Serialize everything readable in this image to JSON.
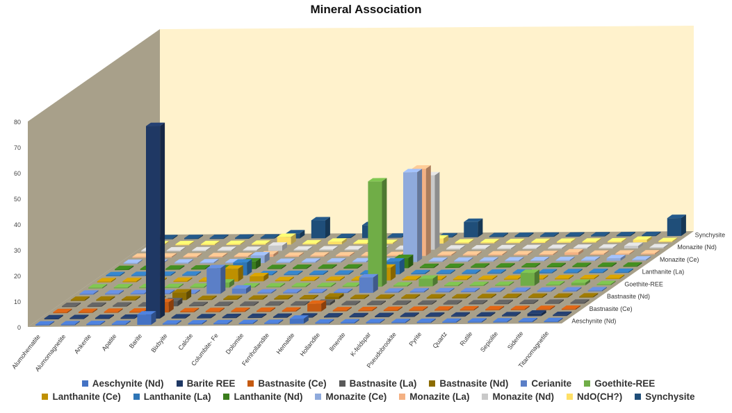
{
  "chart_data": {
    "type": "bar",
    "subtype": "3d-clustered-depth",
    "title": "Mineral Association",
    "xlabel": "",
    "ylabel": "",
    "ylim": [
      0,
      80
    ],
    "yticks": [
      0,
      10,
      20,
      30,
      40,
      50,
      60,
      70,
      80
    ],
    "legend_position": "bottom",
    "categories": [
      "Alumohematite",
      "Alumomagnetite",
      "Ankerite",
      "Apatite",
      "Barite",
      "Bixbyite",
      "Calcite",
      "Columbite- Fe",
      "Dolomite",
      "Ferrihollandite",
      "Hematite",
      "Hollandite",
      "Ilmenite",
      "K-feldspar",
      "Pseudobrookite",
      "Pyrite",
      "Quartz",
      "Rutile",
      "Sepiolite",
      "Siderite",
      "Titanomagnetite"
    ],
    "depth_labels": [
      "Aeschynite (Nd)",
      "Bastnasite (Ce)",
      "Bastnasite (Nd)",
      "Goethite-REE",
      "Lanthanite (La)",
      "Monazite (Ce)",
      "Monazite (Nd)",
      "Synchysite"
    ],
    "series": [
      {
        "name": "Aeschynite (Nd)",
        "color": "#4472C4",
        "values": [
          0,
          0,
          0,
          0,
          4,
          0,
          0,
          0,
          0,
          0,
          2,
          0,
          0,
          0,
          0,
          0,
          0,
          0,
          0,
          0,
          0
        ]
      },
      {
        "name": "Barite REE",
        "color": "#1F3864",
        "values": [
          0,
          0,
          0,
          0,
          75,
          0,
          0,
          0,
          0,
          0,
          0,
          0,
          0,
          0,
          0,
          0,
          0,
          0,
          0,
          1,
          0
        ]
      },
      {
        "name": "Bastnasite (Ce)",
        "color": "#C55A11",
        "values": [
          0,
          0,
          0,
          0,
          4,
          0,
          0,
          0,
          0,
          0,
          3,
          0,
          0,
          0,
          0,
          0,
          0,
          0,
          0,
          0,
          0
        ]
      },
      {
        "name": "Bastnasite (La)",
        "color": "#595959",
        "values": [
          0,
          0,
          0,
          0,
          2,
          0,
          0,
          0,
          0,
          0,
          1,
          0,
          0,
          0,
          0,
          0,
          0,
          0,
          0,
          0,
          0
        ]
      },
      {
        "name": "Bastnasite (Nd)",
        "color": "#8C6C00",
        "values": [
          0,
          0,
          0,
          0,
          3,
          0,
          0,
          0,
          0,
          0,
          1,
          0,
          0,
          0,
          0,
          0,
          0,
          0,
          0,
          0,
          0
        ]
      },
      {
        "name": "Cerianite",
        "color": "#5B7FC7",
        "values": [
          0,
          0,
          0,
          0,
          0,
          10,
          2,
          0,
          0,
          0,
          0,
          6,
          0,
          0,
          0,
          0,
          0,
          0,
          0,
          0,
          0
        ]
      },
      {
        "name": "Goethite-REE",
        "color": "#70AD47",
        "values": [
          0,
          0,
          0,
          0,
          0,
          2,
          0,
          0,
          0,
          0,
          0,
          41,
          0,
          3,
          0,
          0,
          0,
          5,
          0,
          1,
          0
        ]
      },
      {
        "name": "Lanthanite (Ce)",
        "color": "#BF9000",
        "values": [
          0,
          0,
          0,
          0,
          0,
          5,
          2,
          0,
          0,
          0,
          0,
          5,
          0,
          0,
          0,
          0,
          0,
          0,
          0,
          0,
          0
        ]
      },
      {
        "name": "Lanthanite (La)",
        "color": "#2E75B6",
        "values": [
          0,
          0,
          0,
          0,
          0,
          5,
          0,
          0,
          0,
          0,
          0,
          5,
          0,
          0,
          0,
          0,
          0,
          0,
          0,
          0,
          0
        ]
      },
      {
        "name": "Lanthanite (Nd)",
        "color": "#3A7D1C",
        "values": [
          0,
          0,
          0,
          0,
          0,
          3,
          0,
          0,
          0,
          0,
          0,
          4,
          0,
          0,
          0,
          0,
          0,
          0,
          0,
          0,
          0
        ]
      },
      {
        "name": "Monazite (Ce)",
        "color": "#8FAADC",
        "values": [
          0,
          0,
          0,
          0,
          0,
          3,
          0,
          0,
          0,
          0,
          0,
          35,
          0,
          0,
          0,
          0,
          0,
          0,
          0,
          1,
          0
        ]
      },
      {
        "name": "Monazite (La)",
        "color": "#F4B183",
        "values": [
          0,
          0,
          0,
          0,
          0,
          1,
          0,
          0,
          0,
          0,
          0,
          34,
          0,
          0,
          0,
          0,
          0,
          1,
          0,
          0,
          0
        ]
      },
      {
        "name": "Monazite (Nd)",
        "color": "#C9C9C9",
        "values": [
          0,
          0,
          0,
          0,
          0,
          2,
          0,
          0,
          0,
          0,
          0,
          29,
          0,
          0,
          0,
          0,
          0,
          0,
          0,
          1,
          0
        ]
      },
      {
        "name": "NdO(CH?)",
        "color": "#FFE066",
        "values": [
          0,
          0,
          0,
          0,
          0,
          3,
          0,
          1,
          0,
          0,
          0,
          2,
          0,
          0,
          0,
          0,
          0,
          0,
          0,
          1,
          0
        ]
      },
      {
        "name": "Synchysite",
        "color": "#1F4E79",
        "values": [
          0,
          0,
          0,
          0,
          0,
          2,
          7,
          0,
          5,
          0,
          3,
          0,
          6,
          0,
          0,
          0,
          0,
          0,
          0,
          0,
          7
        ]
      }
    ]
  }
}
